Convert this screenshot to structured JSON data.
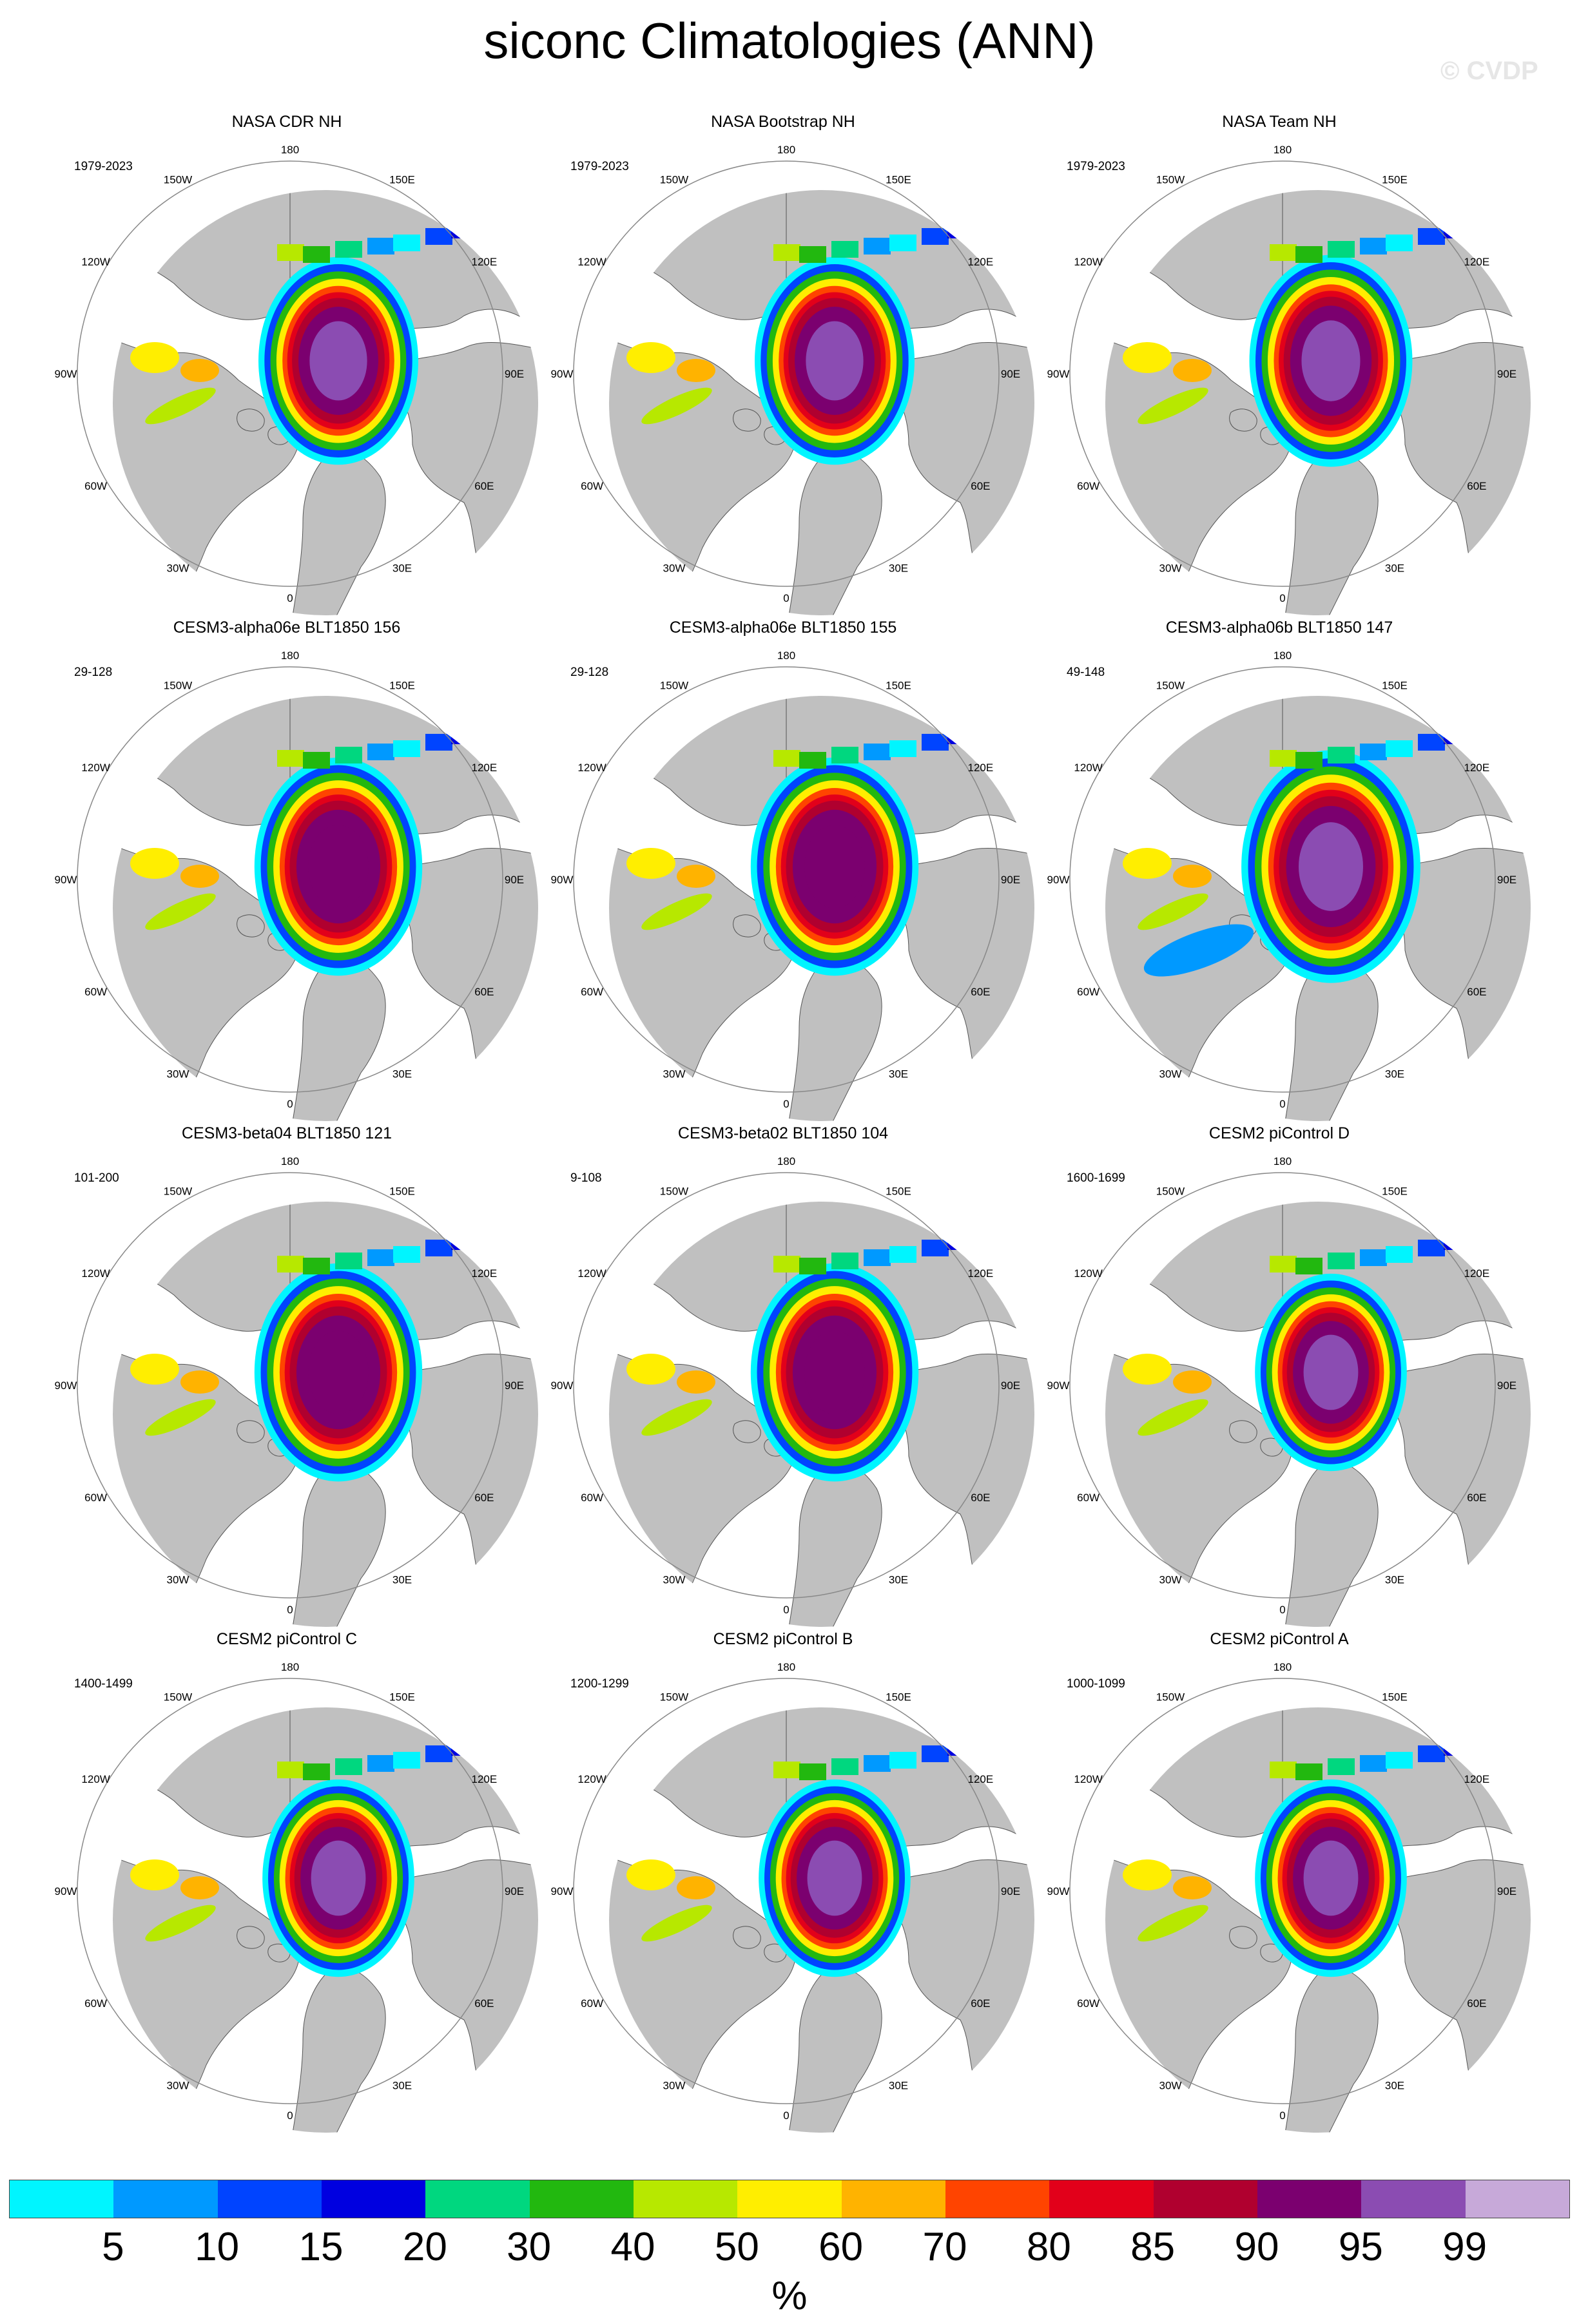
{
  "title": "siconc Climatologies (ANN)",
  "watermark": "© CVDP",
  "longitude_labels": [
    "180",
    "150E",
    "120E",
    "90E",
    "60E",
    "30E",
    "0",
    "30W",
    "60W",
    "90W",
    "120W",
    "150W"
  ],
  "panels": [
    {
      "title": "NASA CDR NH",
      "period": "1979-2023",
      "ice": "obs-cdr"
    },
    {
      "title": "NASA Bootstrap NH",
      "period": "1979-2023",
      "ice": "obs-bootstrap"
    },
    {
      "title": "NASA Team NH",
      "period": "1979-2023",
      "ice": "obs-team"
    },
    {
      "title": "CESM3-alpha06e BLT1850 156",
      "period": "29-128",
      "ice": "model-high"
    },
    {
      "title": "CESM3-alpha06e BLT1850 155",
      "period": "29-128",
      "ice": "model-high"
    },
    {
      "title": "CESM3-alpha06b BLT1850 147",
      "period": "49-148",
      "ice": "model-extensive"
    },
    {
      "title": "CESM3-beta04 BLT1850 121",
      "period": "101-200",
      "ice": "model-high"
    },
    {
      "title": "CESM3-beta02 BLT1850 104",
      "period": "9-108",
      "ice": "model-high"
    },
    {
      "title": "CESM2 piControl D",
      "period": "1600-1699",
      "ice": "model-low"
    },
    {
      "title": "CESM2 piControl C",
      "period": "1400-1499",
      "ice": "model-low"
    },
    {
      "title": "CESM2 piControl B",
      "period": "1200-1299",
      "ice": "model-low"
    },
    {
      "title": "CESM2 piControl A",
      "period": "1000-1099",
      "ice": "model-low"
    }
  ],
  "colorbar": {
    "colors": [
      "#00f5ff",
      "#0099ff",
      "#0044ff",
      "#0000e0",
      "#00d77f",
      "#22b80f",
      "#b7e800",
      "#ffee00",
      "#ffb300",
      "#ff4400",
      "#e2001a",
      "#b0002f",
      "#7b006f",
      "#8b4cb2",
      "#c7a9d9"
    ],
    "labels": [
      "5",
      "10",
      "15",
      "20",
      "30",
      "40",
      "50",
      "60",
      "70",
      "80",
      "85",
      "90",
      "95",
      "99"
    ],
    "unit": "%"
  },
  "colors": {
    "land": "#c0c0c0",
    "ocean": "#ffffff",
    "coast": "#555555"
  }
}
